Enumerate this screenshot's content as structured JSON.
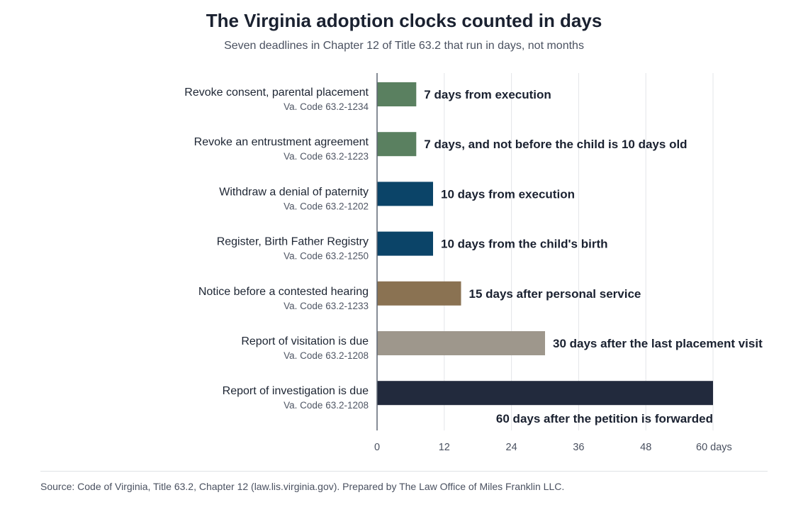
{
  "chart_data": {
    "type": "bar",
    "orientation": "horizontal",
    "title": "The Virginia adoption clocks counted in days",
    "subtitle": "Seven deadlines in Chapter 12 of Title 63.2 that run in days, not months",
    "categories": [
      "Revoke consent, parental placement",
      "Revoke an entrustment agreement",
      "Withdraw a denial of paternity",
      "Register, Birth Father Registry",
      "Notice before a contested hearing",
      "Report of visitation is due",
      "Report of investigation is due"
    ],
    "citations": [
      "Va. Code 63.2-1234",
      "Va. Code 63.2-1223",
      "Va. Code 63.2-1202",
      "Va. Code 63.2-1250",
      "Va. Code 63.2-1233",
      "Va. Code 63.2-1208",
      "Va. Code 63.2-1208"
    ],
    "values": [
      7,
      7,
      10,
      10,
      15,
      30,
      60
    ],
    "data_labels": [
      "7 days from execution",
      "7 days, and not before the child is 10 days old",
      "10 days from execution",
      "10 days from the child's birth",
      "15 days after personal service",
      "30 days after the last placement visit",
      "60 days after the petition is forwarded"
    ],
    "colors": [
      "#5a8060",
      "#5a8060",
      "#0b4468",
      "#0b4468",
      "#8a7252",
      "#9e978c",
      "#222a3d"
    ],
    "xlim": [
      0,
      60
    ],
    "xticks": [
      0,
      12,
      24,
      36,
      48,
      60
    ],
    "xtick_labels": [
      "0",
      "12",
      "24",
      "36",
      "48",
      "60 days"
    ],
    "xlabel": "",
    "ylabel": "",
    "grid": true,
    "legend": "none"
  },
  "source": "Source: Code of Virginia, Title 63.2, Chapter 12 (law.lis.virginia.gov). Prepared by The Law Office of Miles Franklin LLC."
}
